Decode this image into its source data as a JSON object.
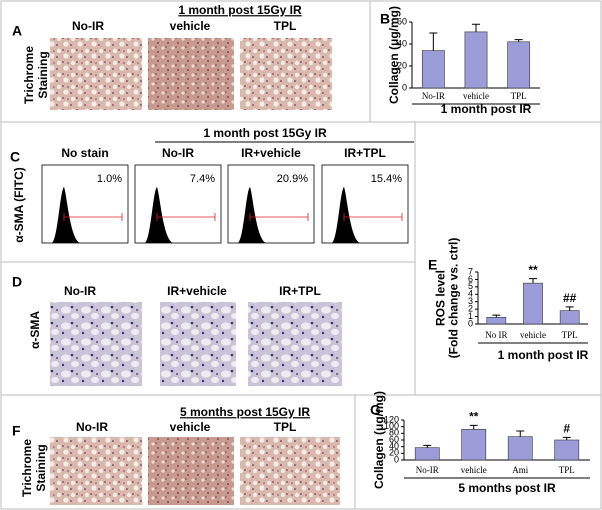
{
  "panels": {
    "A": {
      "label": "A",
      "title": "1 month post 15Gy IR",
      "side_label": [
        "Trichrome",
        "Staining"
      ],
      "image_labels": [
        "No-IR",
        "vehicle",
        "TPL"
      ]
    },
    "C": {
      "label": "C",
      "title": "1 month post 15Gy IR",
      "side_label": "α-SMA (FITC)",
      "image_labels": [
        "No stain",
        "No-IR",
        "IR+vehicle",
        "IR+TPL"
      ],
      "percents": [
        "1.0%",
        "7.4%",
        "20.9%",
        "15.4%"
      ]
    },
    "D": {
      "label": "D",
      "side_label": "α-SMA",
      "image_labels": [
        "No-IR",
        "IR+vehicle",
        "IR+TPL"
      ]
    },
    "F": {
      "label": "F",
      "title": "5 months post 15Gy IR",
      "side_label": [
        "Trichrome",
        "Staining"
      ],
      "image_labels": [
        "No-IR",
        "vehicle",
        "TPL"
      ]
    }
  },
  "chart_data": [
    {
      "type": "bar",
      "panel_label": "B",
      "ylabel": [
        "Collagen (μg/mg)"
      ],
      "xlabel": "1 month post IR",
      "categories": [
        "No-IR",
        "vehicle",
        "TPL"
      ],
      "values": [
        34,
        51,
        42
      ],
      "errors": [
        16,
        7,
        2
      ],
      "value_annotations": [
        null,
        null,
        null
      ],
      "color": "#9c9cd8",
      "ylim": [
        0,
        60
      ],
      "yticks": [
        0,
        20,
        40,
        60
      ]
    },
    {
      "type": "bar",
      "panel_label": "E",
      "ylabel": [
        "ROS level",
        "(Fold change vs. ctrl)"
      ],
      "xlabel": "1 month post IR",
      "categories": [
        "No IR",
        "vehicle",
        "TPL"
      ],
      "values": [
        0.9,
        5.5,
        1.8
      ],
      "errors": [
        0.3,
        0.6,
        0.5
      ],
      "value_annotations": [
        null,
        "**",
        "##"
      ],
      "color": "#9c9cd8",
      "ylim": [
        0,
        7
      ],
      "yticks": [
        0,
        1,
        2,
        3,
        4,
        5,
        6,
        7
      ]
    },
    {
      "type": "bar",
      "panel_label": "G",
      "ylabel": [
        "Collagen (μg/mg)"
      ],
      "xlabel": "5 months post IR",
      "categories": [
        "No-IR",
        "vehicle",
        "Ami",
        "TPL"
      ],
      "values": [
        37,
        92,
        70,
        60
      ],
      "errors": [
        7,
        12,
        17,
        8
      ],
      "value_annotations": [
        null,
        "**",
        null,
        "#"
      ],
      "color": "#9c9cd8",
      "ylim": [
        0,
        120
      ],
      "yticks": [
        0,
        20,
        40,
        60,
        80,
        100,
        120
      ]
    }
  ]
}
